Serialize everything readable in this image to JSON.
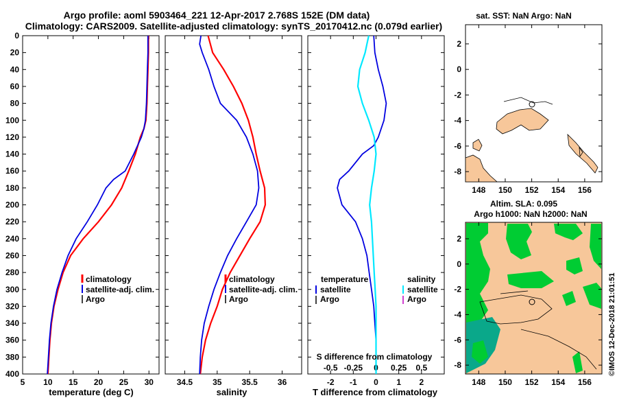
{
  "header": {
    "line1": "Argo profile: aoml 5903464_221 12-Apr-2017 2.768S 152E (DM data)",
    "line2": "Climatology: CARS2009. Satellite-adjusted climatology: synTS_20170412.nc (0.079d earlier)"
  },
  "colors": {
    "climatology": "#ff0000",
    "satellite": "#0000e0",
    "argo": "#000000",
    "satellite_s": "#00e8ff",
    "argo_s": "#c000c0",
    "land": "#f7c79a",
    "map_green": "#00cc33",
    "map_teal": "#0aa88a"
  },
  "chart_data": [
    {
      "type": "line",
      "name": "temperature",
      "xlabel": "temperature (deg C)",
      "ylabel": "",
      "xlim": [
        5,
        32
      ],
      "ylim": [
        0,
        400
      ],
      "y_inverted": true,
      "xticks": [
        5,
        10,
        15,
        20,
        25,
        30
      ],
      "yticks": [
        0,
        20,
        40,
        60,
        80,
        100,
        120,
        140,
        160,
        180,
        200,
        220,
        240,
        260,
        280,
        300,
        320,
        340,
        360,
        380,
        400
      ],
      "legend": [
        "climatology",
        "satellite-adj. clim.",
        "Argo"
      ],
      "series": [
        {
          "name": "climatology",
          "depth": [
            0,
            20,
            40,
            60,
            80,
            100,
            110,
            120,
            140,
            160,
            180,
            200,
            220,
            240,
            260,
            280,
            300,
            320,
            340,
            360,
            380,
            400
          ],
          "values": [
            29.9,
            29.9,
            29.8,
            29.7,
            29.6,
            29.4,
            29.0,
            28.3,
            27.3,
            26.0,
            24.6,
            22.6,
            20.0,
            17.0,
            14.5,
            13.0,
            12.0,
            11.2,
            10.7,
            10.4,
            10.2,
            10.0
          ]
        },
        {
          "name": "satellite-adj. clim.",
          "depth": [
            0,
            20,
            40,
            60,
            80,
            100,
            110,
            120,
            140,
            160,
            170,
            180,
            200,
            220,
            240,
            260,
            280,
            300,
            320,
            340,
            360,
            380,
            400
          ],
          "values": [
            29.8,
            29.8,
            29.7,
            29.6,
            29.5,
            29.3,
            29.0,
            28.5,
            27.0,
            25.3,
            23.0,
            21.5,
            19.8,
            17.8,
            15.6,
            14.0,
            12.8,
            11.8,
            11.1,
            10.6,
            10.3,
            10.1,
            9.9
          ]
        }
      ]
    },
    {
      "type": "line",
      "name": "salinity",
      "xlabel": "salinity",
      "xlim": [
        34.2,
        36.3
      ],
      "ylim": [
        0,
        400
      ],
      "y_inverted": true,
      "xticks": [
        34.5,
        35,
        35.5,
        36
      ],
      "legend": [
        "climatology",
        "satellite-adj. clim.",
        "Argo"
      ],
      "series": [
        {
          "name": "climatology",
          "depth": [
            0,
            20,
            40,
            60,
            80,
            100,
            120,
            140,
            160,
            180,
            200,
            220,
            240,
            260,
            280,
            300,
            320,
            340,
            360,
            380,
            400
          ],
          "values": [
            34.86,
            34.93,
            35.1,
            35.25,
            35.38,
            35.48,
            35.55,
            35.6,
            35.66,
            35.73,
            35.74,
            35.66,
            35.5,
            35.35,
            35.2,
            35.08,
            35.0,
            34.9,
            34.82,
            34.77,
            34.74
          ]
        },
        {
          "name": "satellite-adj. clim.",
          "depth": [
            0,
            10,
            20,
            40,
            60,
            80,
            100,
            120,
            140,
            160,
            180,
            200,
            220,
            240,
            260,
            280,
            300,
            320,
            340,
            360,
            380,
            400
          ],
          "values": [
            34.75,
            34.73,
            34.77,
            34.87,
            34.95,
            35.05,
            35.3,
            35.45,
            35.55,
            35.62,
            35.64,
            35.6,
            35.45,
            35.3,
            35.16,
            35.05,
            34.95,
            34.87,
            34.8,
            34.76,
            34.74,
            34.73
          ]
        }
      ]
    },
    {
      "type": "line",
      "name": "difference",
      "xlabel": "T difference from climatology",
      "x2label": "S difference from climatology",
      "xlim": [
        -3,
        3
      ],
      "x2lim": [
        -0.75,
        0.75
      ],
      "ylim": [
        0,
        400
      ],
      "y_inverted": true,
      "xticks": [
        -2,
        -1,
        0,
        1,
        2
      ],
      "x2ticks": [
        -0.5,
        -0.25,
        0,
        0.25,
        0.5
      ],
      "legend": {
        "temperature": [
          "satellite",
          "Argo"
        ],
        "salinity": [
          "satellite",
          "Argo"
        ]
      },
      "series": [
        {
          "name": "temperature satellite",
          "depth": [
            0,
            20,
            40,
            60,
            80,
            100,
            120,
            130,
            140,
            160,
            170,
            180,
            200,
            220,
            240,
            260,
            280,
            300,
            320,
            340,
            360,
            380,
            400
          ],
          "values": [
            -0.1,
            -0.05,
            0.1,
            0.3,
            0.45,
            0.35,
            0.1,
            -0.1,
            -0.6,
            -1.2,
            -1.6,
            -1.7,
            -1.5,
            -0.9,
            -0.6,
            -0.4,
            -0.3,
            -0.2,
            -0.1,
            -0.05,
            0.0,
            0.0,
            0.0
          ]
        },
        {
          "name": "salinity satellite",
          "depth": [
            0,
            10,
            20,
            40,
            60,
            80,
            100,
            120,
            140,
            160,
            180,
            200,
            220,
            240,
            260,
            280,
            300,
            320,
            340,
            360,
            380,
            400
          ],
          "values": [
            -0.08,
            -0.1,
            -0.12,
            -0.18,
            -0.2,
            -0.15,
            -0.08,
            -0.02,
            0.0,
            -0.02,
            -0.05,
            -0.07,
            -0.05,
            -0.04,
            -0.03,
            -0.02,
            -0.01,
            0.0,
            0.0,
            0.0,
            0.0,
            0.0
          ]
        }
      ]
    }
  ],
  "axes": {
    "yticks_labels": [
      "0",
      "20",
      "40",
      "60",
      "80",
      "100",
      "120",
      "140",
      "160",
      "180",
      "200",
      "220",
      "240",
      "260",
      "280",
      "300",
      "320",
      "340",
      "360",
      "380",
      "400"
    ],
    "temp_ticks": [
      "5",
      "10",
      "15",
      "20",
      "25",
      "30"
    ],
    "sal_ticks": [
      "34.5",
      "35",
      "35.5",
      "36"
    ],
    "tdiff_ticks": [
      "-2",
      "-1",
      "0",
      "1",
      "2"
    ],
    "sdiff_ticks": [
      "-0.5",
      "-0.25",
      "0",
      "0.25",
      "0.5"
    ]
  },
  "legends": {
    "clim": "climatology",
    "sat": "satellite-adj. clim.",
    "argo": "Argo",
    "temperature": "temperature",
    "salinity": "salinity",
    "satellite": "satellite",
    "sdiff": "S difference from climatology"
  },
  "maps": {
    "top_title": "sat. SST: NaN Argo: NaN",
    "mid_title": "Altim. SLA: 0.095",
    "bot_title": "Argo h1000: NaN h2000: NaN",
    "yticks": [
      "2",
      "0",
      "-2",
      "-4",
      "-6",
      "-8"
    ],
    "xticks": [
      "148",
      "150",
      "152",
      "154",
      "156"
    ],
    "credit": "©IMOS 12-Dec-2018 21:01:51"
  }
}
